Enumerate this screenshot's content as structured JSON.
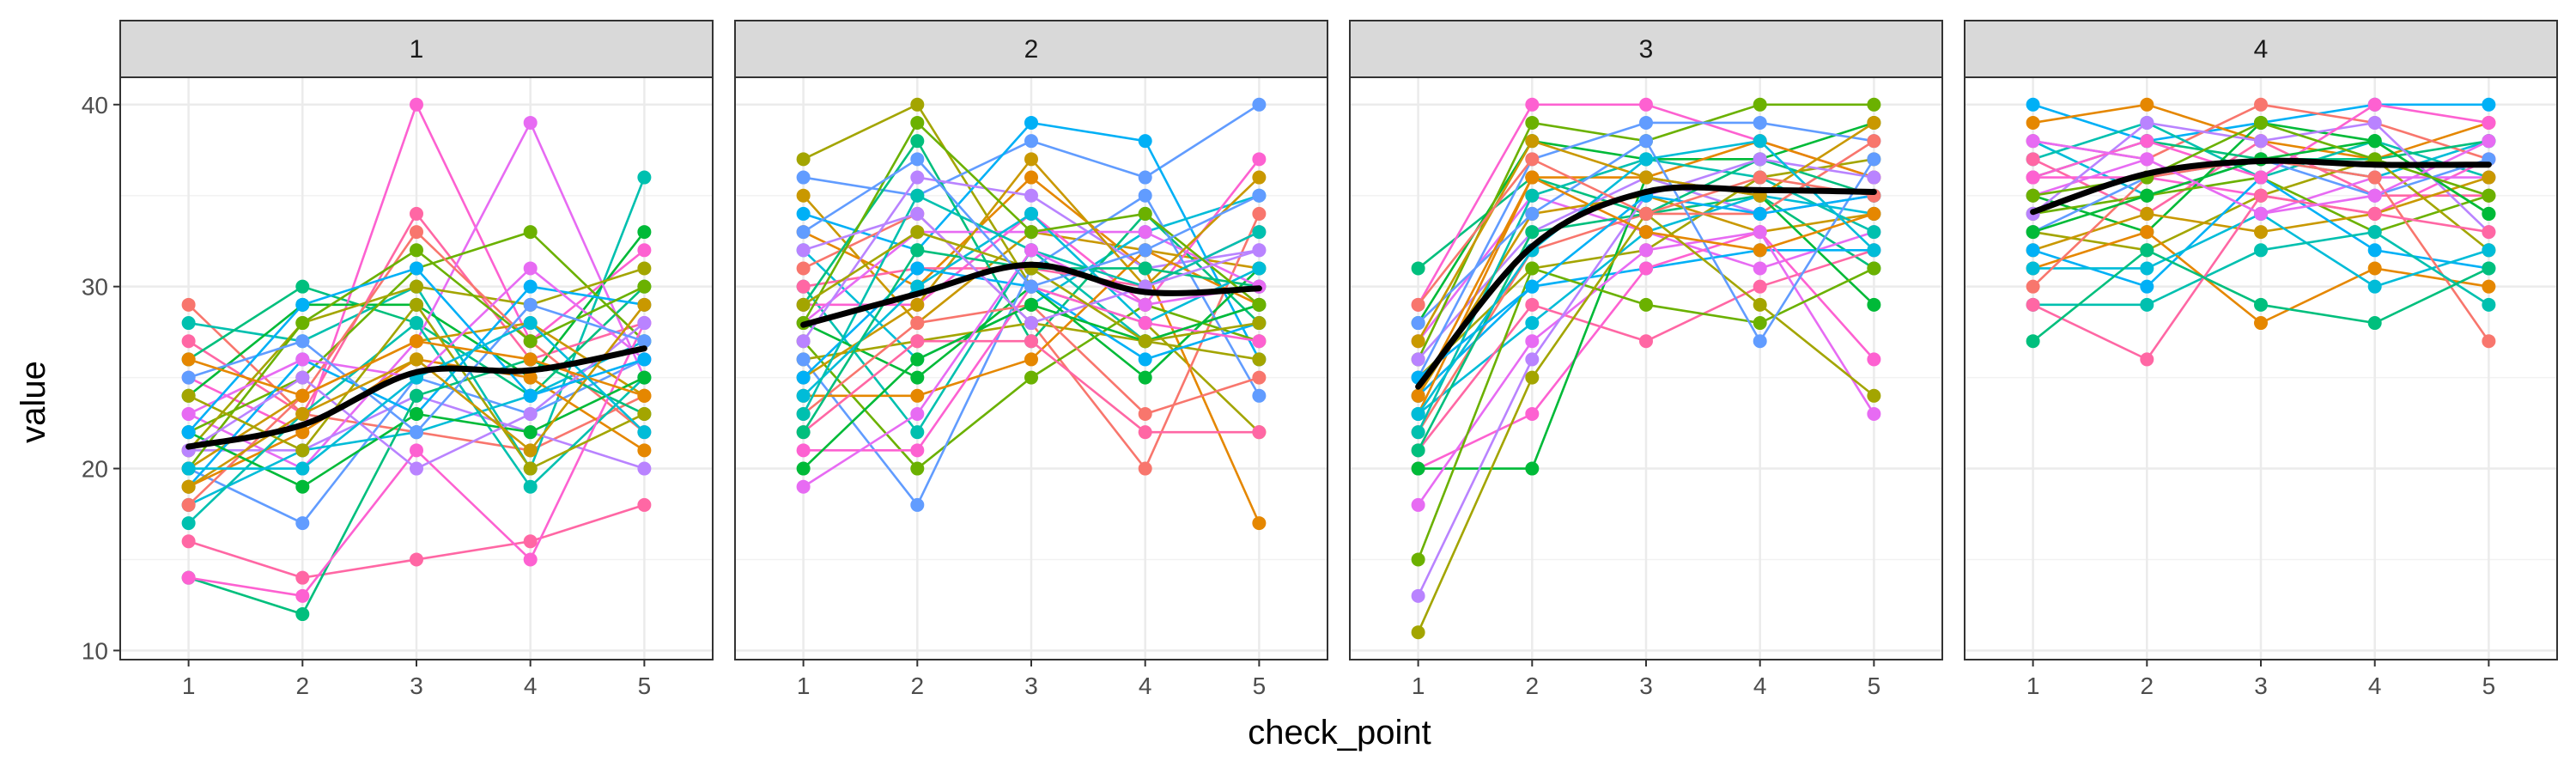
{
  "chart_data": {
    "type": "line",
    "xlabel": "check_point",
    "ylabel": "value",
    "x": [
      1,
      2,
      3,
      4,
      5
    ],
    "ylim": [
      9.5,
      41.5
    ],
    "yticks": [
      10,
      20,
      30,
      40
    ],
    "grid": true,
    "legend": "none",
    "panels": [
      {
        "label": "1",
        "smooth": [
          21.2,
          22.4,
          25.3,
          25.4,
          26.6
        ],
        "series": [
          [
            29,
            23,
            22,
            21,
            24
          ],
          [
            28,
            27,
            30,
            20,
            36
          ],
          [
            27,
            23,
            34,
            26,
            28
          ],
          [
            26,
            30,
            28,
            24,
            30
          ],
          [
            25,
            22,
            40,
            27,
            32
          ],
          [
            24,
            29,
            29,
            25,
            33
          ],
          [
            23,
            20,
            27,
            39,
            25
          ],
          [
            22,
            25,
            31,
            33,
            27
          ],
          [
            21,
            21,
            24,
            22,
            20
          ],
          [
            21,
            28,
            30,
            29,
            31
          ],
          [
            20,
            17,
            25,
            23,
            26
          ],
          [
            20,
            24,
            27,
            28,
            24
          ],
          [
            19,
            26,
            23,
            30,
            29
          ],
          [
            19,
            22,
            26,
            25,
            21
          ],
          [
            18,
            21,
            22,
            24,
            27
          ],
          [
            18,
            24,
            33,
            27,
            22
          ],
          [
            17,
            23,
            28,
            19,
            25
          ],
          [
            16,
            14,
            15,
            16,
            18
          ],
          [
            14,
            12,
            24,
            26,
            23
          ],
          [
            14,
            13,
            21,
            15,
            28
          ],
          [
            22,
            19,
            23,
            22,
            25
          ],
          [
            23,
            26,
            25,
            31,
            26
          ],
          [
            20,
            28,
            32,
            27,
            30
          ],
          [
            21,
            25,
            20,
            23,
            28
          ],
          [
            24,
            21,
            29,
            20,
            23
          ],
          [
            25,
            27,
            22,
            29,
            27
          ],
          [
            19,
            23,
            26,
            21,
            29
          ],
          [
            22,
            29,
            31,
            24,
            26
          ],
          [
            26,
            24,
            27,
            26,
            24
          ],
          [
            20,
            20,
            25,
            28,
            22
          ]
        ]
      },
      {
        "label": "2",
        "smooth": [
          27.9,
          29.6,
          31.2,
          29.7,
          29.9
        ],
        "series": [
          [
            37,
            40,
            30,
            28,
            22
          ],
          [
            36,
            35,
            38,
            36,
            40
          ],
          [
            35,
            28,
            33,
            32,
            31
          ],
          [
            34,
            32,
            39,
            38,
            26
          ],
          [
            33,
            30,
            36,
            31,
            17
          ],
          [
            32,
            26,
            29,
            33,
            35
          ],
          [
            31,
            34,
            28,
            20,
            34
          ],
          [
            30,
            22,
            32,
            27,
            29
          ],
          [
            30,
            31,
            31,
            30,
            33
          ],
          [
            29,
            38,
            27,
            34,
            28
          ],
          [
            29,
            29,
            34,
            29,
            37
          ],
          [
            28,
            25,
            30,
            25,
            31
          ],
          [
            28,
            33,
            33,
            33,
            30
          ],
          [
            27,
            20,
            25,
            29,
            27
          ],
          [
            27,
            36,
            35,
            31,
            32
          ],
          [
            26,
            27,
            28,
            27,
            26
          ],
          [
            26,
            18,
            31,
            35,
            24
          ],
          [
            25,
            29,
            37,
            30,
            36
          ],
          [
            25,
            31,
            30,
            26,
            28
          ],
          [
            24,
            24,
            26,
            32,
            29
          ],
          [
            24,
            30,
            34,
            28,
            31
          ],
          [
            23,
            28,
            29,
            23,
            25
          ],
          [
            23,
            35,
            32,
            30,
            33
          ],
          [
            22,
            27,
            27,
            22,
            22
          ],
          [
            22,
            32,
            31,
            31,
            30
          ],
          [
            21,
            21,
            30,
            28,
            27
          ],
          [
            20,
            26,
            29,
            27,
            29
          ],
          [
            19,
            23,
            32,
            29,
            30
          ],
          [
            28,
            39,
            33,
            34,
            29
          ],
          [
            32,
            34,
            28,
            30,
            32
          ],
          [
            29,
            33,
            31,
            27,
            28
          ],
          [
            33,
            37,
            30,
            32,
            35
          ]
        ]
      },
      {
        "label": "3",
        "smooth": [
          24.5,
          32.2,
          35.2,
          35.3,
          35.2
        ],
        "series": [
          [
            31,
            36,
            34,
            35,
            31
          ],
          [
            29,
            40,
            40,
            38,
            36
          ],
          [
            28,
            38,
            37,
            37,
            39
          ],
          [
            27,
            35,
            33,
            31,
            33
          ],
          [
            26,
            39,
            38,
            40,
            40
          ],
          [
            26,
            33,
            36,
            34,
            35
          ],
          [
            25,
            31,
            32,
            36,
            37
          ],
          [
            25,
            37,
            39,
            39,
            38
          ],
          [
            24,
            34,
            35,
            33,
            34
          ],
          [
            24,
            30,
            31,
            32,
            32
          ],
          [
            23,
            36,
            36,
            38,
            36
          ],
          [
            23,
            28,
            33,
            35,
            34
          ],
          [
            22,
            32,
            34,
            34,
            38
          ],
          [
            22,
            35,
            37,
            36,
            33
          ],
          [
            21,
            29,
            27,
            30,
            32
          ],
          [
            21,
            33,
            34,
            37,
            35
          ],
          [
            20,
            23,
            31,
            33,
            26
          ],
          [
            20,
            20,
            36,
            35,
            29
          ],
          [
            18,
            27,
            32,
            33,
            23
          ],
          [
            15,
            31,
            29,
            28,
            31
          ],
          [
            13,
            26,
            35,
            37,
            36
          ],
          [
            11,
            25,
            34,
            29,
            24
          ],
          [
            28,
            34,
            38,
            27,
            37
          ],
          [
            27,
            38,
            36,
            35,
            39
          ],
          [
            25,
            30,
            35,
            34,
            35
          ],
          [
            24,
            36,
            33,
            32,
            34
          ],
          [
            23,
            32,
            37,
            38,
            32
          ],
          [
            29,
            37,
            34,
            36,
            35
          ]
        ]
      },
      {
        "label": "4",
        "smooth": [
          34.1,
          36.2,
          36.9,
          36.7,
          36.7
        ],
        "series": [
          [
            40,
            38,
            39,
            40,
            40
          ],
          [
            39,
            40,
            38,
            37,
            39
          ],
          [
            38,
            35,
            37,
            36,
            38
          ],
          [
            38,
            37,
            40,
            39,
            37
          ],
          [
            37,
            39,
            36,
            38,
            36
          ],
          [
            37,
            34,
            38,
            35,
            35
          ],
          [
            36,
            38,
            37,
            37,
            38
          ],
          [
            36,
            36,
            35,
            34,
            37
          ],
          [
            35,
            33,
            39,
            38,
            34
          ],
          [
            35,
            37,
            34,
            36,
            36
          ],
          [
            34,
            35,
            36,
            33,
            35
          ],
          [
            34,
            39,
            38,
            39,
            33
          ],
          [
            33,
            32,
            35,
            37,
            32
          ],
          [
            33,
            36,
            37,
            35,
            37
          ],
          [
            32,
            34,
            33,
            34,
            36
          ],
          [
            32,
            30,
            36,
            32,
            31
          ],
          [
            31,
            33,
            28,
            31,
            30
          ],
          [
            31,
            31,
            34,
            30,
            32
          ],
          [
            30,
            36,
            37,
            36,
            27
          ],
          [
            29,
            29,
            32,
            33,
            29
          ],
          [
            29,
            26,
            35,
            34,
            33
          ],
          [
            27,
            32,
            29,
            28,
            31
          ],
          [
            36,
            38,
            36,
            40,
            39
          ],
          [
            33,
            35,
            37,
            38,
            34
          ],
          [
            38,
            37,
            34,
            35,
            38
          ],
          [
            35,
            36,
            39,
            37,
            35
          ]
        ]
      }
    ]
  }
}
